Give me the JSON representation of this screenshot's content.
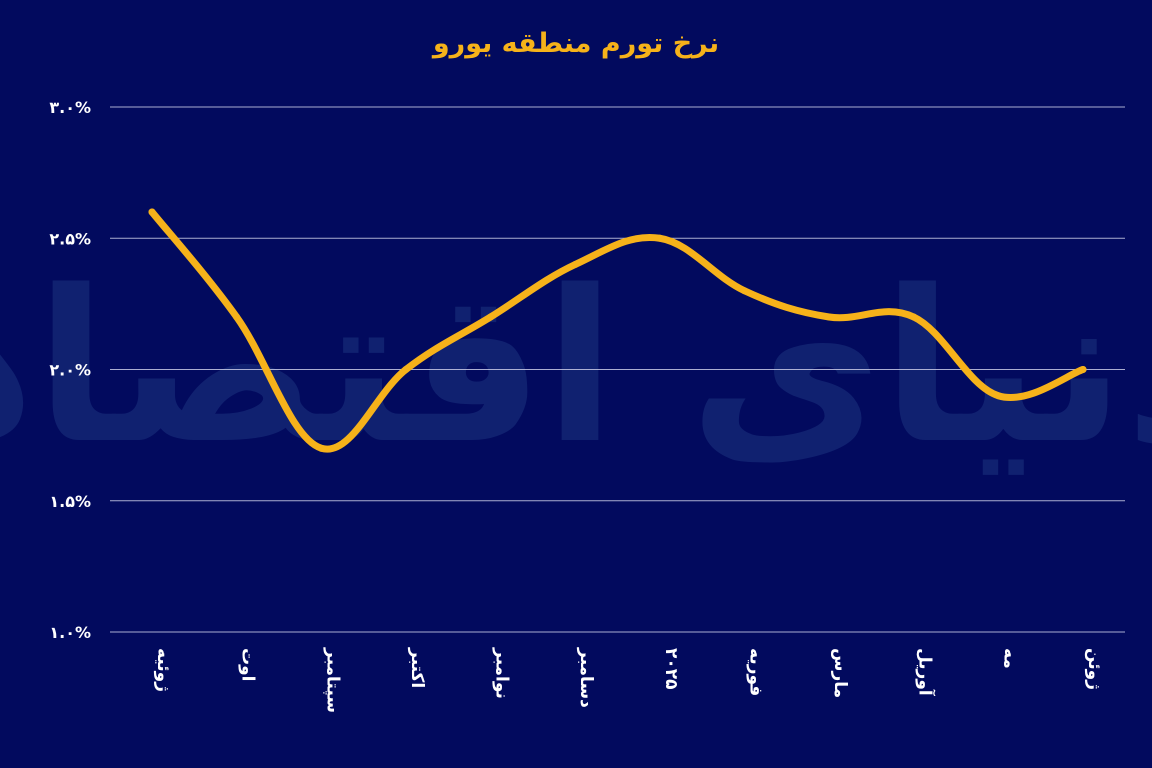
{
  "chart_data": {
    "type": "line",
    "title": "نرخ تورم منطقه یورو",
    "xlabel": "",
    "ylabel": "",
    "categories": [
      "ژوئیه",
      "اوت",
      "سپتامبر",
      "اکتبر",
      "نوامبر",
      "دسامبر",
      "۲۰۲۵",
      "فوریه",
      "مارس",
      "آوریل",
      "مه",
      "ژوئن"
    ],
    "series": [
      {
        "values": [
          2.6,
          2.2,
          1.7,
          2.0,
          2.2,
          2.4,
          2.5,
          2.3,
          2.2,
          2.2,
          1.9,
          2.0
        ]
      }
    ],
    "ylim": [
      1.0,
      3.0
    ],
    "yticks": [
      1.0,
      1.5,
      2.0,
      2.5,
      3.0
    ],
    "ytick_labels": [
      "۱.۰%",
      "۱.۵%",
      "۲.۰%",
      "۲.۵%",
      "۳.۰%"
    ],
    "grid": true,
    "legend": "none",
    "colors": {
      "background": "#020a5e",
      "line": "#f6b21a",
      "title": "#f6b21a",
      "grid": "#c9cbe6",
      "text": "#ffffff",
      "watermark": "#1c3580"
    },
    "watermark": "دنیای اقتصاد"
  }
}
